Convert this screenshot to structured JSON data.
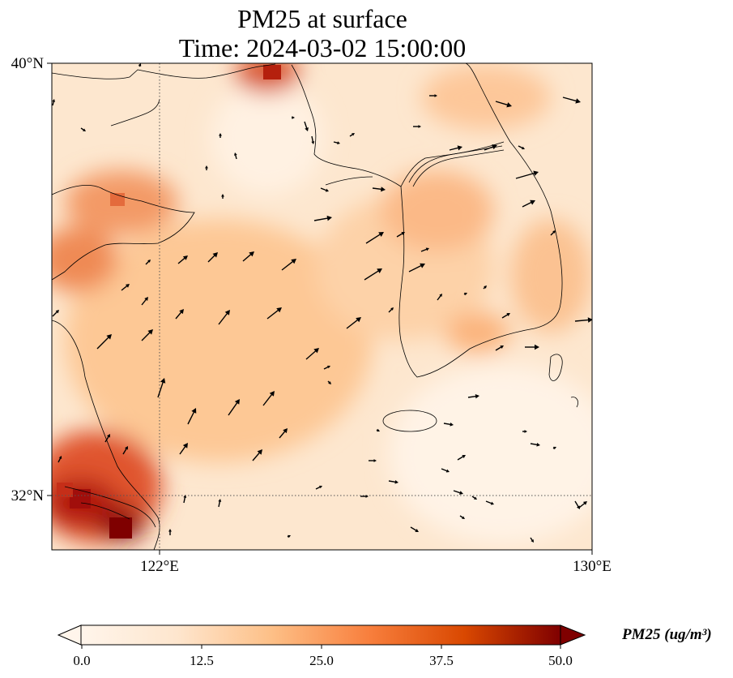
{
  "map": {
    "title_line1": "PM25 at surface",
    "title_line2": "Time: 2024-03-02 15:00:00",
    "lat_labels": [
      "40°N",
      "32°N"
    ],
    "lon_labels": [
      "122°E",
      "130°E"
    ],
    "lat_range": [
      31,
      40
    ],
    "lon_range": [
      120,
      130
    ],
    "field": "PM25",
    "arrow_color": "#000000"
  },
  "colorbar": {
    "label": "PM25 (ug/m³)",
    "ticks": [
      "0.0",
      "12.5",
      "25.0",
      "37.5",
      "50.0"
    ],
    "min": 0,
    "max": 50,
    "colors": [
      "#fff5eb",
      "#fdd9b5",
      "#fdbf86",
      "#f87f3d",
      "#c93a09",
      "#7f0000"
    ],
    "extend": "both"
  }
}
